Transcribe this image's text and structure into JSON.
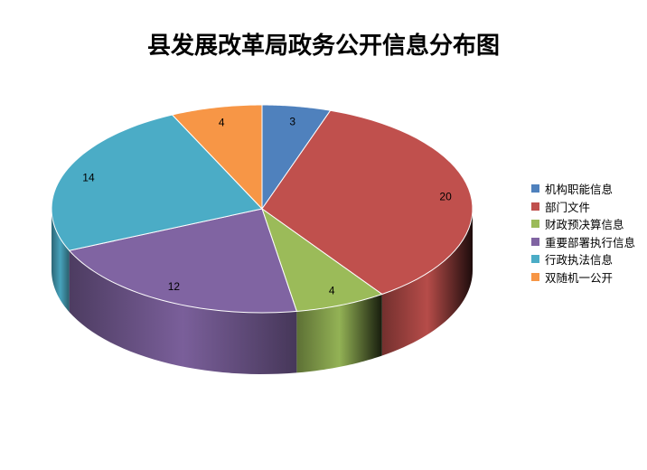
{
  "chart_data": {
    "type": "pie",
    "style": "3d",
    "title": "县发展改革局政务公开信息分布图",
    "categories": [
      "机构职能信息",
      "部门文件",
      "财政预决算信息",
      "重要部署执行信息",
      "行政执法信息",
      "双随机一公开"
    ],
    "values": [
      3,
      20,
      4,
      12,
      14,
      4
    ],
    "colors": [
      "#4f81bd",
      "#c0504d",
      "#9bbb59",
      "#8064a2",
      "#4bacc6",
      "#f79646"
    ],
    "data_labels": [
      "3",
      "20",
      "4",
      "12",
      "14",
      "4"
    ],
    "legend_position": "right"
  }
}
